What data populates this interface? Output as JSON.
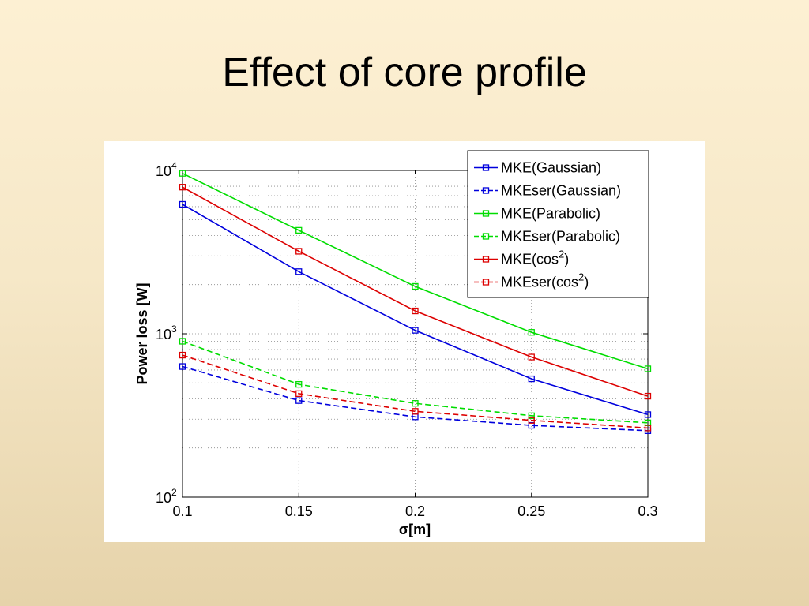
{
  "slide": {
    "title": "Effect of core profile"
  },
  "chart_data": {
    "type": "line",
    "title": "",
    "xlabel": "σ[m]",
    "ylabel": "Power loss [W]",
    "x": [
      0.1,
      0.15,
      0.2,
      0.25,
      0.3
    ],
    "xlim": [
      0.1,
      0.3
    ],
    "ylim": [
      100,
      10000
    ],
    "yscale": "log",
    "x_tick_labels": [
      "0.1",
      "0.15",
      "0.2",
      "0.25",
      "0.3"
    ],
    "y_tick_labels": [
      {
        "value": 100,
        "base": "10",
        "exp": "2"
      },
      {
        "value": 1000,
        "base": "10",
        "exp": "3"
      },
      {
        "value": 10000,
        "base": "10",
        "exp": "4"
      }
    ],
    "grid": true,
    "legend_position": "top-right",
    "series": [
      {
        "name": "MKE(Gaussian)",
        "color": "#0000dd",
        "style": "solid",
        "marker": "square",
        "values": [
          6200,
          2400,
          1050,
          530,
          320
        ]
      },
      {
        "name": "MKEser(Gaussian)",
        "color": "#0000dd",
        "style": "dashed",
        "marker": "square",
        "values": [
          630,
          390,
          310,
          275,
          255
        ]
      },
      {
        "name": "MKE(Parabolic)",
        "color": "#00dd00",
        "style": "solid",
        "marker": "square",
        "values": [
          9600,
          4300,
          1950,
          1020,
          610
        ]
      },
      {
        "name": "MKEser(Parabolic)",
        "color": "#00dd00",
        "style": "dashed",
        "marker": "square",
        "values": [
          900,
          490,
          375,
          315,
          285
        ]
      },
      {
        "name": "MKE(cos",
        "sup": "2",
        "suffix": ")",
        "color": "#dd0000",
        "style": "solid",
        "marker": "square",
        "values": [
          7900,
          3200,
          1380,
          720,
          415
        ]
      },
      {
        "name": "MKEser(cos",
        "sup": "2",
        "suffix": ")",
        "color": "#dd0000",
        "style": "dashed",
        "marker": "square",
        "values": [
          740,
          430,
          335,
          295,
          265
        ]
      }
    ]
  }
}
